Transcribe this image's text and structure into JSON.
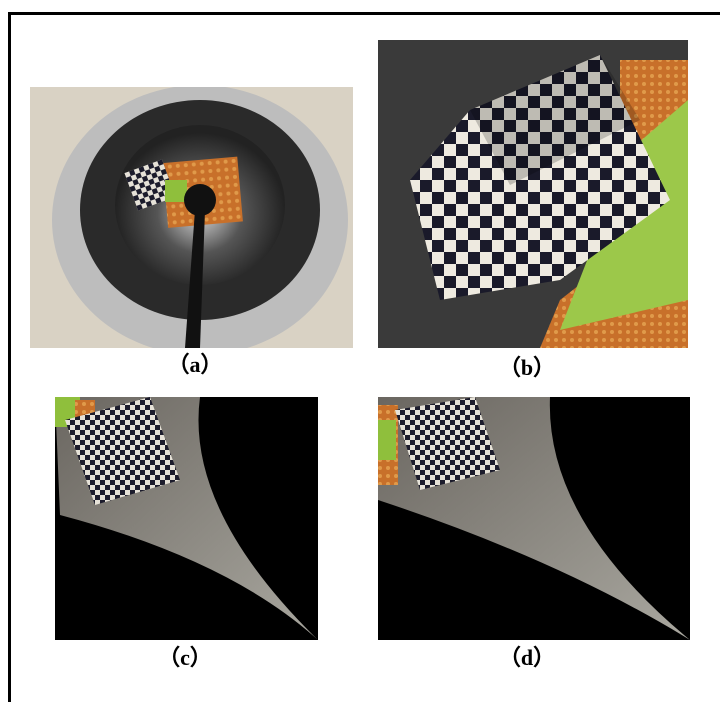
{
  "captions": [
    "（a）",
    "（b）",
    "（c）",
    "（d）"
  ]
}
